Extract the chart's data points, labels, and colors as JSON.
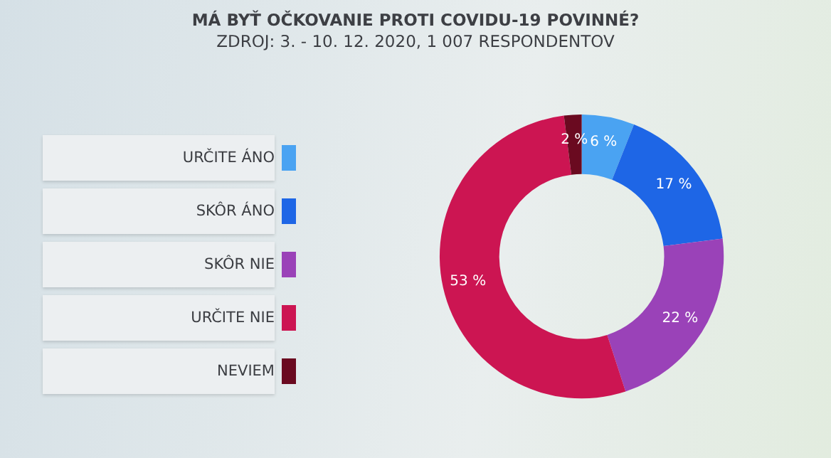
{
  "chart_data": {
    "type": "donut",
    "title": "MÁ BYŤ OČKOVANIE PROTI COVIDU-19 POVINNÉ?",
    "subtitle": "ZDROJ: 3. - 10. 12. 2020, 1 007 RESPONDENTOV",
    "categories": [
      "URČITE ÁNO",
      "SKÔR ÁNO",
      "SKÔR NIE",
      "URČITE NIE",
      "NEVIEM"
    ],
    "values": [
      6,
      17,
      22,
      53,
      2
    ],
    "colors": [
      "#4aa3f2",
      "#1e66e6",
      "#9a42b8",
      "#cc1552",
      "#6a0a20"
    ],
    "value_labels": [
      "6 %",
      "17 %",
      "22 %",
      "53 %",
      "2 %"
    ],
    "legend": "left"
  }
}
